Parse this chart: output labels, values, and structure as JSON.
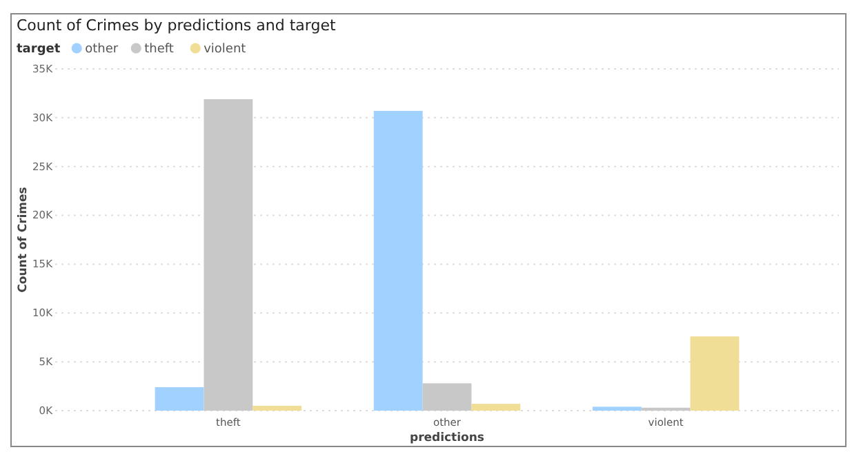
{
  "chart_data": {
    "type": "bar",
    "title": "Count of Crimes by predictions and target",
    "legend_title": "target",
    "xlabel": "predictions",
    "ylabel": "Count of Crimes",
    "categories": [
      "theft",
      "other",
      "violent"
    ],
    "series": [
      {
        "name": "other",
        "color": "#a0d1ff",
        "values": [
          2400,
          30700,
          400
        ]
      },
      {
        "name": "theft",
        "color": "#c8c8c8",
        "values": [
          31900,
          2800,
          300
        ]
      },
      {
        "name": "violent",
        "color": "#f0de96",
        "values": [
          500,
          700,
          7600
        ]
      }
    ],
    "ylim": [
      0,
      35000
    ],
    "yticks": [
      {
        "value": 0,
        "label": "0K"
      },
      {
        "value": 5000,
        "label": "5K"
      },
      {
        "value": 10000,
        "label": "10K"
      },
      {
        "value": 15000,
        "label": "15K"
      },
      {
        "value": 20000,
        "label": "20K"
      },
      {
        "value": 25000,
        "label": "25K"
      },
      {
        "value": 30000,
        "label": "30K"
      },
      {
        "value": 35000,
        "label": "35K"
      }
    ],
    "grid": "y",
    "legend": "top left"
  }
}
